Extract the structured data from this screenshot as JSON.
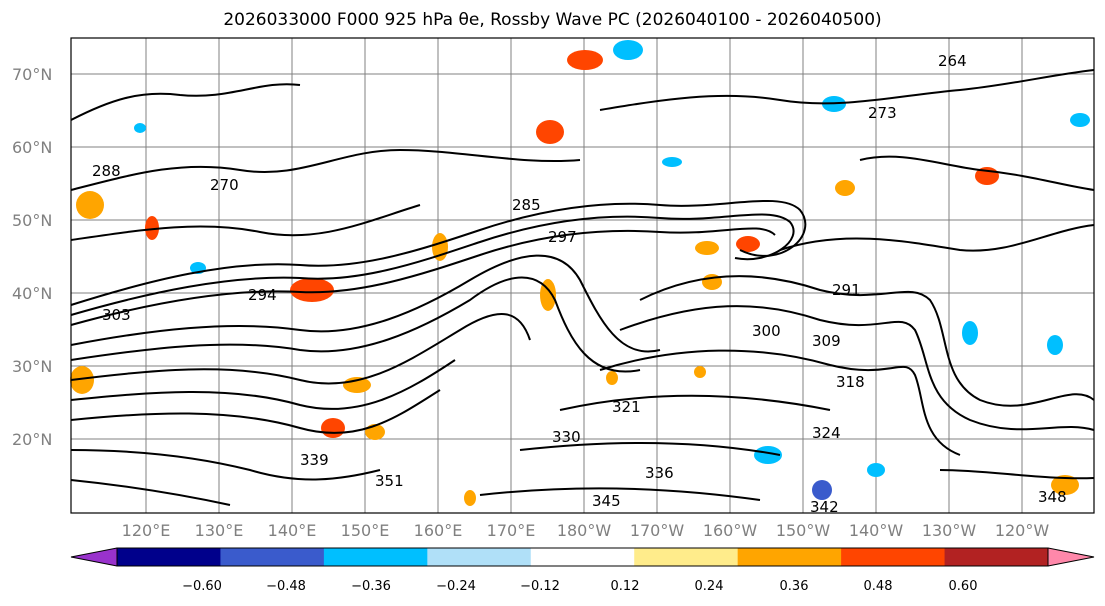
{
  "title": "2026033000 F000 925 hPa θe, Rossby Wave PC (2026040100 - 2026040500)",
  "map": {
    "lat_labels": [
      "70°N",
      "60°N",
      "50°N",
      "40°N",
      "30°N",
      "20°N"
    ],
    "lon_labels": [
      "120°E",
      "130°E",
      "140°E",
      "150°E",
      "160°E",
      "170°E",
      "180°W",
      "170°W",
      "160°W",
      "150°W",
      "140°W",
      "130°W",
      "120°W"
    ],
    "contour_labels": [
      "288",
      "270",
      "285",
      "297",
      "291",
      "300",
      "309",
      "318",
      "321",
      "324",
      "330",
      "336",
      "339",
      "342",
      "345",
      "348",
      "351",
      "273",
      "264",
      "294",
      "303"
    ],
    "gridline_color": "#808080"
  },
  "colorbar": {
    "tick_labels": [
      "−0.60",
      "−0.48",
      "−0.36",
      "−0.24",
      "−0.12",
      "0.12",
      "0.24",
      "0.36",
      "0.48",
      "0.60"
    ],
    "colors": [
      "#9932cc",
      "#00008b",
      "#3a5bcc",
      "#00bfff",
      "#b0e0f8",
      "#ffffff",
      "#ffec8b",
      "#ffa500",
      "#ff4500",
      "#b22222",
      "#ff88aa"
    ]
  }
}
